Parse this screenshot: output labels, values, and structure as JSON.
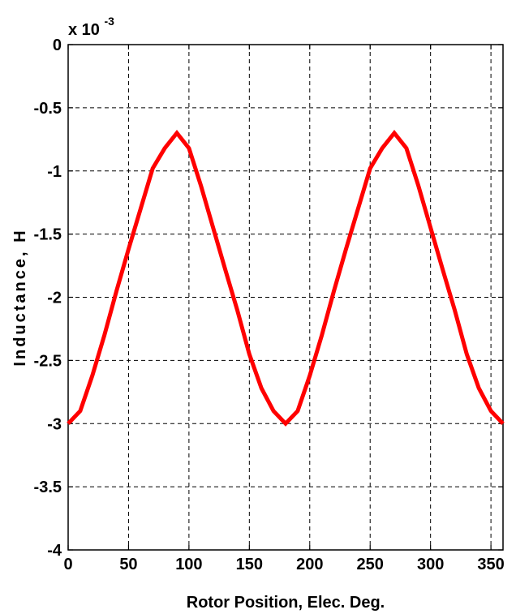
{
  "chart_data": {
    "type": "line",
    "title": "",
    "xlabel": "Rotor Position, Elec. Deg.",
    "ylabel": "Inductance, H",
    "xlim": [
      0,
      360
    ],
    "ylim": [
      -4,
      0
    ],
    "xticks": [
      0,
      50,
      100,
      150,
      200,
      250,
      300,
      350
    ],
    "yticks": [
      0,
      -0.5,
      -1,
      -1.5,
      -2,
      -2.5,
      -3,
      -3.5,
      -4
    ],
    "ytick_labels": [
      "0",
      "-0.5",
      "-1",
      "-1.5",
      "-2",
      "-2.5",
      "-3",
      "-3.5",
      "-4"
    ],
    "y_multiplier": {
      "base": "x 10",
      "exponent": "-3"
    },
    "grid": true,
    "series": [
      {
        "color": "#ff0000",
        "x": [
          0,
          10,
          20,
          30,
          40,
          50,
          60,
          70,
          80,
          90,
          100,
          110,
          120,
          130,
          140,
          150,
          160,
          170,
          180,
          190,
          200,
          210,
          220,
          230,
          240,
          250,
          260,
          270,
          280,
          290,
          300,
          310,
          320,
          330,
          340,
          350,
          360
        ],
        "y": [
          -3.0,
          -2.9,
          -2.62,
          -2.3,
          -1.95,
          -1.62,
          -1.3,
          -0.98,
          -0.82,
          -0.7,
          -0.82,
          -1.12,
          -1.45,
          -1.78,
          -2.1,
          -2.45,
          -2.72,
          -2.9,
          -3.0,
          -2.9,
          -2.62,
          -2.3,
          -1.95,
          -1.62,
          -1.3,
          -0.98,
          -0.82,
          -0.7,
          -0.82,
          -1.12,
          -1.45,
          -1.78,
          -2.1,
          -2.45,
          -2.72,
          -2.9,
          -3.0
        ]
      }
    ]
  }
}
